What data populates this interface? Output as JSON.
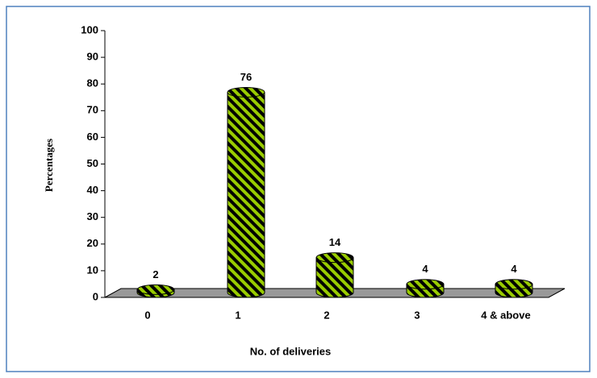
{
  "chart_data": {
    "type": "bar",
    "x_label": "No. of deliveries",
    "y_label": "Percentages",
    "categories": [
      "0",
      "1",
      "2",
      "3",
      "4 & above"
    ],
    "values": [
      2,
      76,
      14,
      4,
      4
    ],
    "color": "#99cc00",
    "ylim": [
      0,
      100
    ],
    "yticks": [
      0,
      10,
      20,
      30,
      40,
      50,
      60,
      70,
      80,
      90,
      100
    ]
  }
}
